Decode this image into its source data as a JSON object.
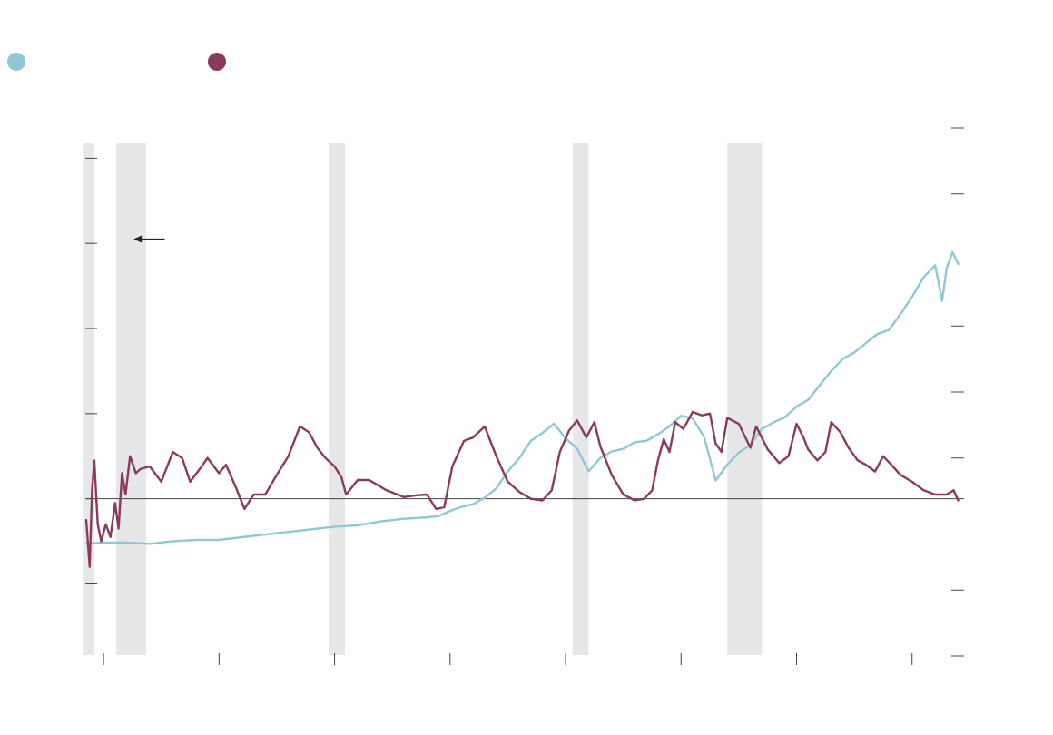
{
  "colors": {
    "series_a": "#8ec8d4",
    "series_b": "#8b3a5e",
    "recession": "#e6e7e9",
    "axis": "#444444",
    "zero_line": "#444444",
    "annotation": "#222222"
  },
  "chart_data": {
    "type": "line",
    "title": "",
    "xlabel": "",
    "ylabel_left": "",
    "ylabel_right": "",
    "xlim": [
      1948.5,
      2024.5
    ],
    "ylim_left": [
      -1.4,
      4.1
    ],
    "ylim_right": [
      -0.75,
      3.25
    ],
    "left_ticks": [
      -1,
      0,
      1,
      2,
      3,
      4
    ],
    "right_ticks": [
      -0.75,
      -0.25,
      0.25,
      0.75,
      1.25,
      1.75,
      2.25,
      2.75,
      3.25
    ],
    "x_ticks": [
      1950,
      1960,
      1970,
      1980,
      1990,
      2000,
      2010,
      2020
    ],
    "tick_labels_visible": false,
    "zero_line_value": 0,
    "grid": false,
    "legend_position": "top-left",
    "shaded_periods": [
      {
        "start": 1948.2,
        "end": 1949.2
      },
      {
        "start": 1951.1,
        "end": 1953.7
      },
      {
        "start": 1969.5,
        "end": 1970.9
      },
      {
        "start": 1990.6,
        "end": 1992.0
      },
      {
        "start": 2004.0,
        "end": 2007.0
      }
    ],
    "annotation": {
      "type": "arrow",
      "x_from": 1955.3,
      "x_to": 1952.6,
      "y_left": 3.05,
      "text": ""
    },
    "series": [
      {
        "axis": "right",
        "color_key": "series_a",
        "points": [
          [
            1948.5,
            0.1
          ],
          [
            1950,
            0.11
          ],
          [
            1952,
            0.11
          ],
          [
            1954,
            0.1
          ],
          [
            1956,
            0.12
          ],
          [
            1958,
            0.13
          ],
          [
            1960,
            0.13
          ],
          [
            1962,
            0.15
          ],
          [
            1964,
            0.17
          ],
          [
            1966,
            0.19
          ],
          [
            1968,
            0.21
          ],
          [
            1970,
            0.23
          ],
          [
            1972,
            0.24
          ],
          [
            1974,
            0.27
          ],
          [
            1976,
            0.29
          ],
          [
            1978,
            0.3
          ],
          [
            1979,
            0.31
          ],
          [
            1980,
            0.35
          ],
          [
            1981,
            0.38
          ],
          [
            1982,
            0.4
          ],
          [
            1983,
            0.45
          ],
          [
            1984,
            0.52
          ],
          [
            1985,
            0.65
          ],
          [
            1986,
            0.75
          ],
          [
            1987,
            0.88
          ],
          [
            1988,
            0.94
          ],
          [
            1989,
            1.01
          ],
          [
            1990,
            0.9
          ],
          [
            1991,
            0.82
          ],
          [
            1992,
            0.65
          ],
          [
            1993,
            0.75
          ],
          [
            1994,
            0.8
          ],
          [
            1995,
            0.82
          ],
          [
            1996,
            0.87
          ],
          [
            1997,
            0.88
          ],
          [
            1998,
            0.93
          ],
          [
            1999,
            0.99
          ],
          [
            2000,
            1.07
          ],
          [
            2001,
            1.05
          ],
          [
            2002,
            0.91
          ],
          [
            2003,
            0.58
          ],
          [
            2004,
            0.7
          ],
          [
            2005,
            0.79
          ],
          [
            2006,
            0.85
          ],
          [
            2007,
            0.97
          ],
          [
            2008,
            1.02
          ],
          [
            2009,
            1.06
          ],
          [
            2010,
            1.14
          ],
          [
            2011,
            1.19
          ],
          [
            2012,
            1.3
          ],
          [
            2013,
            1.41
          ],
          [
            2014,
            1.5
          ],
          [
            2015,
            1.55
          ],
          [
            2016,
            1.62
          ],
          [
            2017,
            1.69
          ],
          [
            2018,
            1.72
          ],
          [
            2019,
            1.84
          ],
          [
            2020,
            1.97
          ],
          [
            2021,
            2.12
          ],
          [
            2022,
            2.21
          ],
          [
            2022.6,
            1.94
          ],
          [
            2023,
            2.19
          ],
          [
            2023.5,
            2.31
          ],
          [
            2024,
            2.22
          ]
        ]
      },
      {
        "axis": "left",
        "color_key": "series_b",
        "points": [
          [
            1948.5,
            -0.25
          ],
          [
            1948.8,
            -0.8
          ],
          [
            1949.0,
            0.1
          ],
          [
            1949.2,
            0.45
          ],
          [
            1949.5,
            -0.3
          ],
          [
            1949.8,
            -0.5
          ],
          [
            1950.2,
            -0.3
          ],
          [
            1950.6,
            -0.45
          ],
          [
            1951.0,
            -0.05
          ],
          [
            1951.3,
            -0.35
          ],
          [
            1951.6,
            0.3
          ],
          [
            1951.9,
            0.05
          ],
          [
            1952.3,
            0.5
          ],
          [
            1952.8,
            0.3
          ],
          [
            1953.2,
            0.35
          ],
          [
            1954.0,
            0.38
          ],
          [
            1955.0,
            0.2
          ],
          [
            1956.0,
            0.55
          ],
          [
            1956.8,
            0.48
          ],
          [
            1957.5,
            0.2
          ],
          [
            1958.5,
            0.38
          ],
          [
            1959.0,
            0.48
          ],
          [
            1960.0,
            0.3
          ],
          [
            1960.6,
            0.4
          ],
          [
            1961.5,
            0.12
          ],
          [
            1962.2,
            -0.12
          ],
          [
            1963.0,
            0.05
          ],
          [
            1964.0,
            0.05
          ],
          [
            1965.0,
            0.28
          ],
          [
            1966.0,
            0.5
          ],
          [
            1967.0,
            0.85
          ],
          [
            1967.8,
            0.78
          ],
          [
            1968.5,
            0.6
          ],
          [
            1969.2,
            0.48
          ],
          [
            1970.0,
            0.38
          ],
          [
            1970.6,
            0.25
          ],
          [
            1971.0,
            0.05
          ],
          [
            1972.0,
            0.22
          ],
          [
            1973.0,
            0.22
          ],
          [
            1974.5,
            0.1
          ],
          [
            1976.0,
            0.02
          ],
          [
            1977.0,
            0.04
          ],
          [
            1978.0,
            0.05
          ],
          [
            1978.8,
            -0.12
          ],
          [
            1979.5,
            -0.1
          ],
          [
            1980.2,
            0.38
          ],
          [
            1981.2,
            0.68
          ],
          [
            1982.0,
            0.72
          ],
          [
            1983.0,
            0.85
          ],
          [
            1984.0,
            0.5
          ],
          [
            1985.0,
            0.2
          ],
          [
            1986.0,
            0.08
          ],
          [
            1987.0,
            0.0
          ],
          [
            1988.0,
            -0.02
          ],
          [
            1988.8,
            0.1
          ],
          [
            1989.5,
            0.55
          ],
          [
            1990.3,
            0.8
          ],
          [
            1991.0,
            0.92
          ],
          [
            1991.8,
            0.72
          ],
          [
            1992.5,
            0.9
          ],
          [
            1993.0,
            0.62
          ],
          [
            1994.0,
            0.28
          ],
          [
            1995.0,
            0.05
          ],
          [
            1996.0,
            -0.02
          ],
          [
            1996.8,
            0.0
          ],
          [
            1997.5,
            0.1
          ],
          [
            1998.0,
            0.45
          ],
          [
            1998.5,
            0.7
          ],
          [
            1999.0,
            0.55
          ],
          [
            1999.5,
            0.9
          ],
          [
            2000.2,
            0.82
          ],
          [
            2001.0,
            1.02
          ],
          [
            2001.8,
            0.98
          ],
          [
            2002.5,
            1.0
          ],
          [
            2003.0,
            0.65
          ],
          [
            2003.5,
            0.55
          ],
          [
            2004.0,
            0.95
          ],
          [
            2005.0,
            0.88
          ],
          [
            2006.0,
            0.6
          ],
          [
            2006.5,
            0.85
          ],
          [
            2007.5,
            0.58
          ],
          [
            2008.5,
            0.42
          ],
          [
            2009.3,
            0.5
          ],
          [
            2010.0,
            0.88
          ],
          [
            2010.6,
            0.72
          ],
          [
            2011.0,
            0.58
          ],
          [
            2011.8,
            0.45
          ],
          [
            2012.5,
            0.55
          ],
          [
            2013.0,
            0.9
          ],
          [
            2013.8,
            0.78
          ],
          [
            2014.5,
            0.6
          ],
          [
            2015.3,
            0.45
          ],
          [
            2016.0,
            0.4
          ],
          [
            2016.8,
            0.32
          ],
          [
            2017.5,
            0.5
          ],
          [
            2018.2,
            0.4
          ],
          [
            2019.0,
            0.28
          ],
          [
            2020.0,
            0.2
          ],
          [
            2021.0,
            0.1
          ],
          [
            2022.0,
            0.05
          ],
          [
            2023.0,
            0.05
          ],
          [
            2023.6,
            0.1
          ],
          [
            2024.0,
            -0.02
          ]
        ]
      }
    ]
  }
}
